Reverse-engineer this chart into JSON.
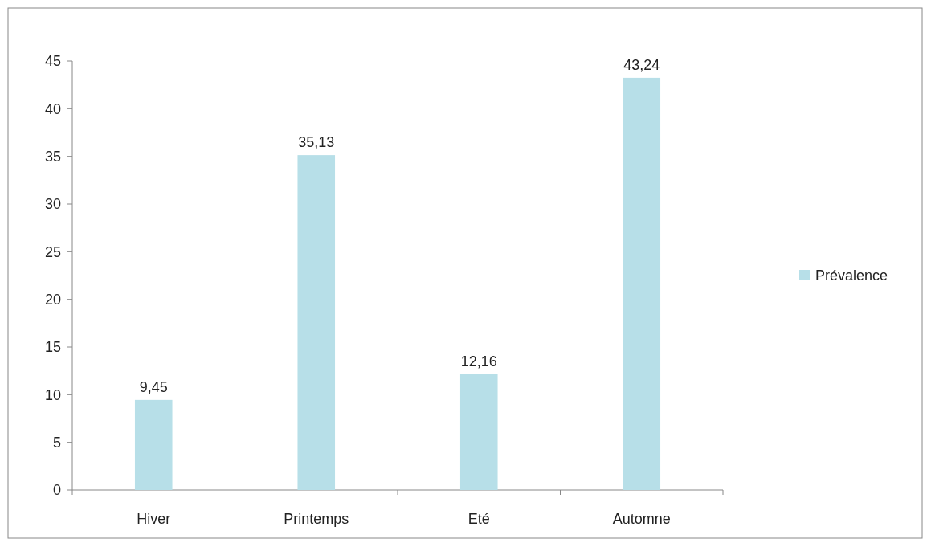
{
  "chart_data": {
    "type": "bar",
    "categories": [
      "Hiver",
      "Printemps",
      "Eté",
      "Automne"
    ],
    "series": [
      {
        "name": "Prévalence",
        "color": "#b7dfe8",
        "values": [
          9.45,
          35.13,
          12.16,
          43.24
        ],
        "value_labels": [
          "9,45",
          "35,13",
          "12,16",
          "43,24"
        ]
      }
    ],
    "ylim": [
      0,
      45
    ],
    "yticks": [
      0,
      5,
      10,
      15,
      20,
      25,
      30,
      35,
      40,
      45
    ],
    "grid": false,
    "legend": "right"
  }
}
